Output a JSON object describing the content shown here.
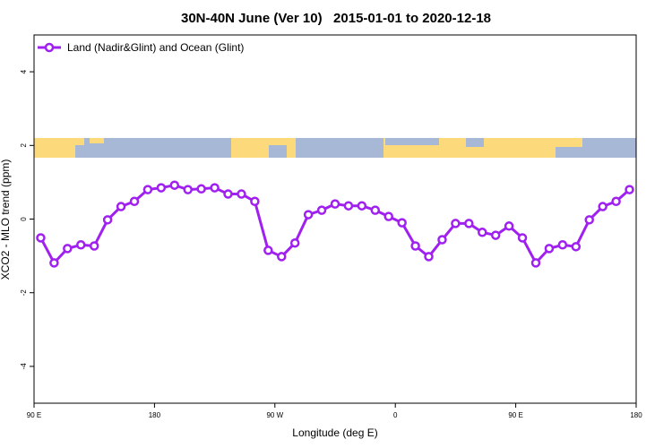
{
  "chart_data": {
    "type": "line",
    "title": "30N-40N June (Ver 10)   2015-01-01 to 2020-12-18",
    "x_label": "Longitude (deg E)",
    "y_label": "XCO2 - MLO trend (ppm)",
    "xlim": [
      90,
      540
    ],
    "ylim": [
      -5,
      5
    ],
    "xticks": [
      {
        "value": 90,
        "label": "90 E"
      },
      180,
      {
        "value": 270,
        "label": "90 W"
      },
      {
        "value": 360,
        "label": "0"
      },
      {
        "value": 450,
        "label": "90 E"
      },
      {
        "value": 540,
        "label": "180"
      }
    ],
    "yticks": [
      4,
      2,
      0,
      -2,
      -4
    ],
    "legend": "top-left",
    "x": [
      95,
      105,
      115,
      125,
      135,
      145,
      155,
      165,
      175,
      185,
      195,
      205,
      215,
      225,
      235,
      245,
      255,
      265,
      275,
      285,
      295,
      305,
      315,
      325,
      335,
      345,
      355,
      365,
      375,
      385,
      395,
      405,
      415,
      425,
      435,
      445,
      455,
      465,
      475,
      485,
      495,
      505,
      515,
      525,
      535
    ],
    "series": [
      {
        "name": "Land (Nadir&Glint) and Ocean (Glint)",
        "color": "#a020f0",
        "values": [
          -0.51,
          -1.19,
          -0.8,
          -0.7,
          -0.73,
          -0.02,
          0.34,
          0.48,
          0.8,
          0.85,
          0.92,
          0.8,
          0.82,
          0.85,
          0.68,
          0.68,
          0.48,
          -0.85,
          -1.02,
          -0.65,
          0.12,
          0.24,
          0.41,
          0.36,
          0.36,
          0.24,
          0.07,
          -0.1,
          -0.73,
          -1.02,
          -0.56,
          -0.12,
          -0.12,
          -0.36,
          -0.44,
          -0.19,
          -0.51,
          -1.19,
          -0.8,
          -0.7,
          -0.75,
          -0.02,
          0.34,
          0.48,
          0.8
        ]
      }
    ]
  }
}
